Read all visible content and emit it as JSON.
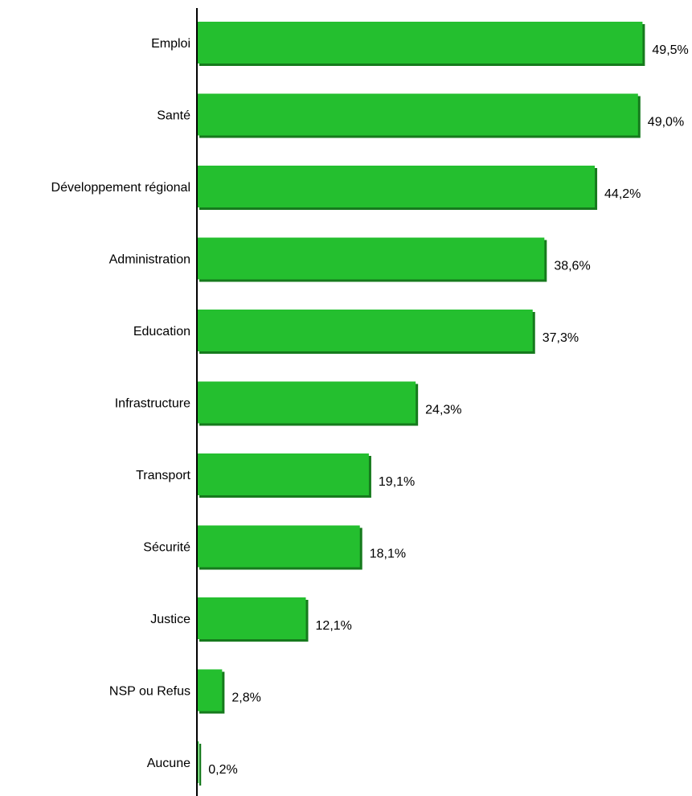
{
  "chart_data": {
    "type": "bar",
    "orientation": "horizontal",
    "categories": [
      "Emploi",
      "Santé",
      "Développement régional",
      "Administration",
      "Education",
      "Infrastructure",
      "Transport",
      "Sécurité",
      "Justice",
      "NSP ou Refus",
      "Aucune"
    ],
    "values": [
      49.5,
      49.0,
      44.2,
      38.6,
      37.3,
      24.3,
      19.1,
      18.1,
      12.1,
      2.8,
      0.2
    ],
    "value_labels": [
      "49,5%",
      "49,0%",
      "44,2%",
      "38,6%",
      "37,3%",
      "24,3%",
      "19,1%",
      "18,1%",
      "12,1%",
      "2,8%",
      "0,2%"
    ],
    "title": "",
    "xlabel": "",
    "ylabel": "",
    "xlim": [
      0,
      50
    ],
    "grid": false,
    "legend": "none",
    "colors": {
      "bar": "#24bf2f",
      "bar_shadow": "#167a1d",
      "axis": "#000000",
      "text": "#000000"
    }
  }
}
